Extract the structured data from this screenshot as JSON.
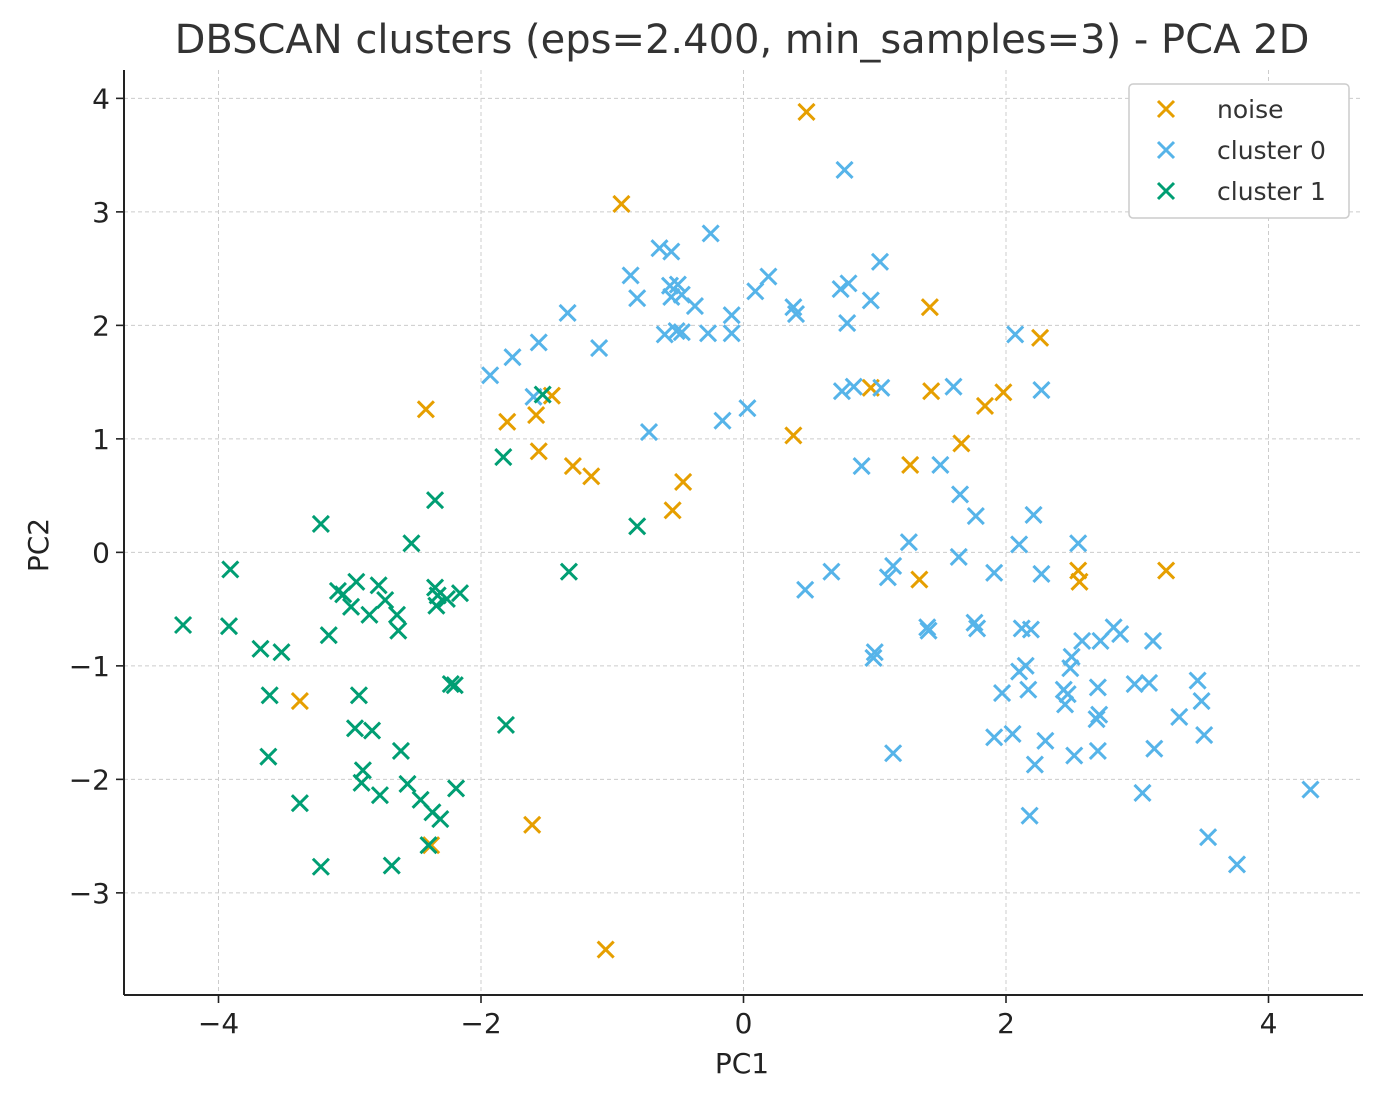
{
  "chart_data": {
    "type": "scatter",
    "title": "DBSCAN clusters (eps=2.400, min_samples=3) - PCA 2D",
    "xlabel": "PC1",
    "ylabel": "PC2",
    "xlim": [
      -4.72,
      4.72
    ],
    "ylim": [
      -3.9,
      4.25
    ],
    "xticks": [
      -4,
      -2,
      0,
      2,
      4
    ],
    "yticks": [
      -3,
      -2,
      -1,
      0,
      1,
      2,
      3,
      4
    ],
    "grid": true,
    "legend_position": "top-right",
    "marker": "x",
    "series": [
      {
        "name": "noise",
        "color": "#E69F00",
        "points": [
          [
            0.48,
            3.88
          ],
          [
            -0.93,
            3.07
          ],
          [
            1.42,
            2.16
          ],
          [
            2.26,
            1.89
          ],
          [
            -2.42,
            1.26
          ],
          [
            -1.8,
            1.15
          ],
          [
            -1.58,
            1.21
          ],
          [
            -1.46,
            1.38
          ],
          [
            -1.56,
            0.89
          ],
          [
            -1.3,
            0.76
          ],
          [
            -1.16,
            0.67
          ],
          [
            -0.54,
            0.37
          ],
          [
            -0.46,
            0.62
          ],
          [
            0.38,
            1.03
          ],
          [
            0.97,
            1.45
          ],
          [
            1.43,
            1.42
          ],
          [
            1.84,
            1.29
          ],
          [
            1.98,
            1.41
          ],
          [
            1.66,
            0.96
          ],
          [
            1.27,
            0.77
          ],
          [
            1.34,
            -0.24
          ],
          [
            2.55,
            -0.16
          ],
          [
            2.56,
            -0.26
          ],
          [
            3.22,
            -0.16
          ],
          [
            -3.38,
            -1.31
          ],
          [
            -1.61,
            -2.4
          ],
          [
            -2.38,
            -2.58
          ],
          [
            -1.05,
            -3.5
          ]
        ]
      },
      {
        "name": "cluster 0",
        "color": "#56B4E9",
        "points": [
          [
            0.77,
            3.37
          ],
          [
            -0.25,
            2.81
          ],
          [
            -0.64,
            2.68
          ],
          [
            -0.55,
            2.65
          ],
          [
            -0.86,
            2.44
          ],
          [
            -0.81,
            2.24
          ],
          [
            -0.56,
            2.35
          ],
          [
            -0.5,
            2.36
          ],
          [
            -0.55,
            2.25
          ],
          [
            -0.47,
            2.27
          ],
          [
            -0.37,
            2.17
          ],
          [
            -0.6,
            1.92
          ],
          [
            -0.51,
            1.95
          ],
          [
            -0.47,
            1.94
          ],
          [
            -0.27,
            1.93
          ],
          [
            -0.09,
            1.93
          ],
          [
            -0.09,
            2.09
          ],
          [
            0.09,
            2.3
          ],
          [
            0.19,
            2.43
          ],
          [
            0.38,
            2.16
          ],
          [
            0.4,
            2.1
          ],
          [
            0.74,
            2.32
          ],
          [
            0.8,
            2.37
          ],
          [
            0.79,
            2.02
          ],
          [
            0.97,
            2.22
          ],
          [
            1.04,
            2.56
          ],
          [
            -1.34,
            2.11
          ],
          [
            -1.1,
            1.8
          ],
          [
            -1.56,
            1.85
          ],
          [
            -1.76,
            1.72
          ],
          [
            -1.93,
            1.56
          ],
          [
            -1.6,
            1.37
          ],
          [
            -0.72,
            1.06
          ],
          [
            -0.16,
            1.16
          ],
          [
            0.03,
            1.27
          ],
          [
            0.75,
            1.42
          ],
          [
            0.84,
            1.46
          ],
          [
            1.05,
            1.45
          ],
          [
            1.6,
            1.46
          ],
          [
            2.07,
            1.92
          ],
          [
            2.27,
            1.43
          ],
          [
            0.9,
            0.76
          ],
          [
            1.5,
            0.77
          ],
          [
            1.65,
            0.51
          ],
          [
            1.77,
            0.32
          ],
          [
            2.21,
            0.33
          ],
          [
            2.1,
            0.07
          ],
          [
            1.26,
            0.09
          ],
          [
            1.64,
            -0.04
          ],
          [
            1.91,
            -0.18
          ],
          [
            2.27,
            -0.19
          ],
          [
            2.55,
            0.08
          ],
          [
            0.67,
            -0.17
          ],
          [
            0.47,
            -0.33
          ],
          [
            1.1,
            -0.22
          ],
          [
            1.14,
            -0.12
          ],
          [
            1.4,
            -0.66
          ],
          [
            1.41,
            -0.69
          ],
          [
            1.76,
            -0.62
          ],
          [
            1.78,
            -0.67
          ],
          [
            2.12,
            -0.67
          ],
          [
            2.19,
            -0.68
          ],
          [
            1.0,
            -0.88
          ],
          [
            0.99,
            -0.93
          ],
          [
            2.58,
            -0.78
          ],
          [
            2.72,
            -0.78
          ],
          [
            2.82,
            -0.66
          ],
          [
            2.87,
            -0.72
          ],
          [
            3.12,
            -0.78
          ],
          [
            2.5,
            -0.92
          ],
          [
            2.49,
            -1.02
          ],
          [
            2.1,
            -1.05
          ],
          [
            2.15,
            -1.0
          ],
          [
            1.97,
            -1.24
          ],
          [
            2.17,
            -1.21
          ],
          [
            2.44,
            -1.21
          ],
          [
            2.47,
            -1.25
          ],
          [
            2.45,
            -1.34
          ],
          [
            2.7,
            -1.19
          ],
          [
            2.98,
            -1.16
          ],
          [
            3.09,
            -1.15
          ],
          [
            3.46,
            -1.13
          ],
          [
            3.49,
            -1.31
          ],
          [
            3.32,
            -1.45
          ],
          [
            2.69,
            -1.47
          ],
          [
            2.71,
            -1.43
          ],
          [
            1.91,
            -1.63
          ],
          [
            2.05,
            -1.6
          ],
          [
            2.3,
            -1.66
          ],
          [
            2.22,
            -1.87
          ],
          [
            2.52,
            -1.79
          ],
          [
            2.7,
            -1.75
          ],
          [
            3.13,
            -1.73
          ],
          [
            3.51,
            -1.61
          ],
          [
            1.14,
            -1.77
          ],
          [
            2.18,
            -2.32
          ],
          [
            3.04,
            -2.12
          ],
          [
            3.54,
            -2.51
          ],
          [
            3.76,
            -2.75
          ],
          [
            4.32,
            -2.09
          ]
        ]
      },
      {
        "name": "cluster 1",
        "color": "#009E73",
        "points": [
          [
            -1.53,
            1.39
          ],
          [
            -1.83,
            0.84
          ],
          [
            -0.81,
            0.23
          ],
          [
            -2.35,
            0.46
          ],
          [
            -3.22,
            0.25
          ],
          [
            -2.53,
            0.08
          ],
          [
            -1.33,
            -0.17
          ],
          [
            -3.91,
            -0.15
          ],
          [
            -4.27,
            -0.64
          ],
          [
            -3.92,
            -0.65
          ],
          [
            -3.68,
            -0.85
          ],
          [
            -3.52,
            -0.88
          ],
          [
            -3.16,
            -0.73
          ],
          [
            -3.09,
            -0.34
          ],
          [
            -3.05,
            -0.37
          ],
          [
            -2.95,
            -0.26
          ],
          [
            -2.99,
            -0.48
          ],
          [
            -2.85,
            -0.55
          ],
          [
            -2.78,
            -0.29
          ],
          [
            -2.73,
            -0.42
          ],
          [
            -2.64,
            -0.55
          ],
          [
            -2.63,
            -0.69
          ],
          [
            -2.35,
            -0.31
          ],
          [
            -2.33,
            -0.38
          ],
          [
            -2.34,
            -0.47
          ],
          [
            -2.26,
            -0.41
          ],
          [
            -2.16,
            -0.36
          ],
          [
            -3.61,
            -1.26
          ],
          [
            -2.93,
            -1.26
          ],
          [
            -2.96,
            -1.55
          ],
          [
            -2.83,
            -1.57
          ],
          [
            -2.23,
            -1.16
          ],
          [
            -2.2,
            -1.17
          ],
          [
            -1.81,
            -1.52
          ],
          [
            -3.62,
            -1.8
          ],
          [
            -2.61,
            -1.75
          ],
          [
            -2.9,
            -1.92
          ],
          [
            -2.91,
            -2.03
          ],
          [
            -2.77,
            -2.14
          ],
          [
            -2.56,
            -2.04
          ],
          [
            -2.46,
            -2.18
          ],
          [
            -2.37,
            -2.29
          ],
          [
            -2.31,
            -2.35
          ],
          [
            -2.19,
            -2.08
          ],
          [
            -3.38,
            -2.21
          ],
          [
            -3.22,
            -2.77
          ],
          [
            -2.68,
            -2.76
          ],
          [
            -2.4,
            -2.58
          ]
        ]
      }
    ]
  }
}
